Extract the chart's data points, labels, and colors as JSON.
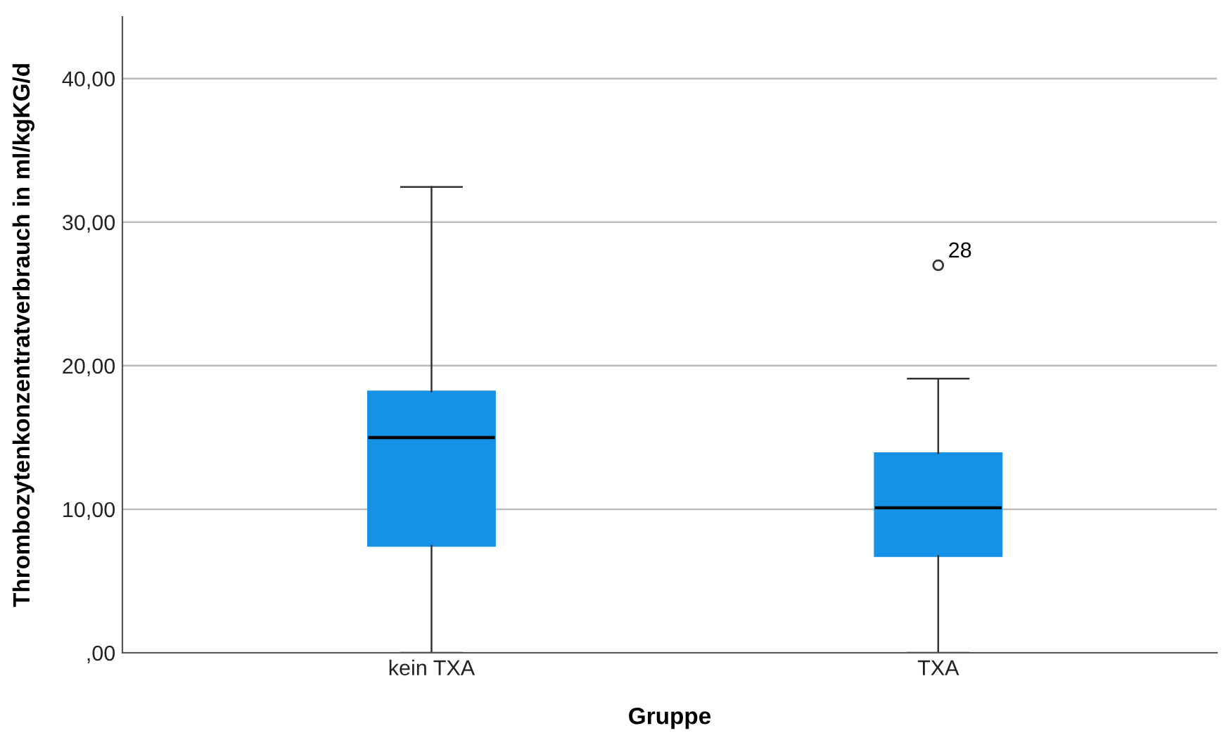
{
  "chart_data": {
    "type": "box",
    "xlabel": "Gruppe",
    "ylabel": "Thrombozytenkonzentratverbrauch in ml/kgKG/d",
    "categories": [
      "kein TXA",
      "TXA"
    ],
    "boxes": [
      {
        "low": 0,
        "q1": 7.45,
        "median": 15.0,
        "q3": 18.2,
        "high": 32.45
      },
      {
        "low": 0,
        "q1": 6.75,
        "median": 10.1,
        "q3": 13.9,
        "high": 19.1,
        "outliers": [
          27.0
        ]
      }
    ],
    "color": "#1591e6",
    "ylim": [
      0,
      44.3
    ],
    "yticks": [
      {
        "value": 0,
        "label": ",00"
      },
      {
        "value": 10,
        "label": "10,00"
      },
      {
        "value": 20,
        "label": "20,00"
      },
      {
        "value": 30,
        "label": "30,00"
      },
      {
        "value": 40,
        "label": "40,00"
      }
    ],
    "grid": "y",
    "annotations": [
      "28"
    ]
  }
}
